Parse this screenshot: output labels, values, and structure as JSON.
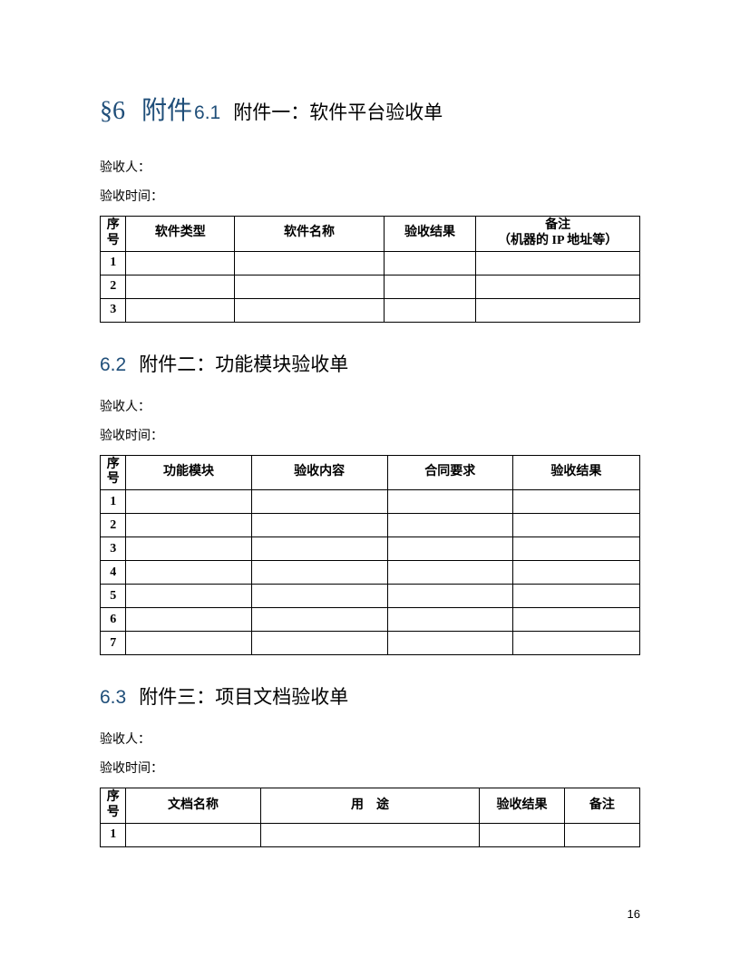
{
  "heading": {
    "symbol": "§",
    "number": "6",
    "title": "附件",
    "sub_number": "6.1",
    "sub_title": "附件一：软件平台验收单"
  },
  "section1": {
    "inspector_label": "验收人：",
    "time_label": "验收时间：",
    "table": {
      "columns": [
        "序号",
        "软件类型",
        "软件名称",
        "验收结果",
        "备注\n（机器的 IP 地址等）"
      ],
      "col_widths": [
        "28px",
        "118px",
        "162px",
        "100px",
        "178px"
      ],
      "rows": [
        [
          "1",
          "",
          "",
          "",
          ""
        ],
        [
          "2",
          "",
          "",
          "",
          ""
        ],
        [
          "3",
          "",
          "",
          "",
          ""
        ]
      ]
    }
  },
  "section2": {
    "number": "6.2",
    "title": "附件二：功能模块验收单",
    "inspector_label": "验收人：",
    "time_label": "验收时间：",
    "table": {
      "columns": [
        "序号",
        "功能模块",
        "验收内容",
        "合同要求",
        "验收结果"
      ],
      "col_widths": [
        "28px",
        "136px",
        "148px",
        "136px",
        "138px"
      ],
      "rows": [
        [
          "1",
          "",
          "",
          "",
          ""
        ],
        [
          "2",
          "",
          "",
          "",
          ""
        ],
        [
          "3",
          "",
          "",
          "",
          ""
        ],
        [
          "4",
          "",
          "",
          "",
          ""
        ],
        [
          "5",
          "",
          "",
          "",
          ""
        ],
        [
          "6",
          "",
          "",
          "",
          ""
        ],
        [
          "7",
          "",
          "",
          "",
          ""
        ]
      ]
    }
  },
  "section3": {
    "number": "6.3",
    "title": "附件三：项目文档验收单",
    "inspector_label": "验收人：",
    "time_label": "验收时间：",
    "table": {
      "columns": [
        "序号",
        "文档名称",
        "用　途",
        "验收结果",
        "备注"
      ],
      "col_widths": [
        "28px",
        "146px",
        "238px",
        "92px",
        "82px"
      ],
      "rows": [
        [
          "1",
          "",
          "",
          "",
          ""
        ]
      ]
    }
  },
  "page_number": "16",
  "colors": {
    "heading_color": "#1f4e79",
    "text_color": "#000000",
    "border_color": "#000000",
    "background_color": "#ffffff"
  }
}
